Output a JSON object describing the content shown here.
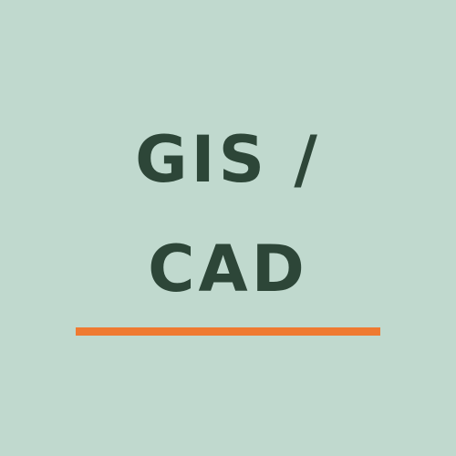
{
  "title": {
    "line1": "GIS /",
    "line2": "CAD"
  },
  "colors": {
    "background": "#c0d9ce",
    "text": "#2d4638",
    "accent": "#ef7a31"
  }
}
